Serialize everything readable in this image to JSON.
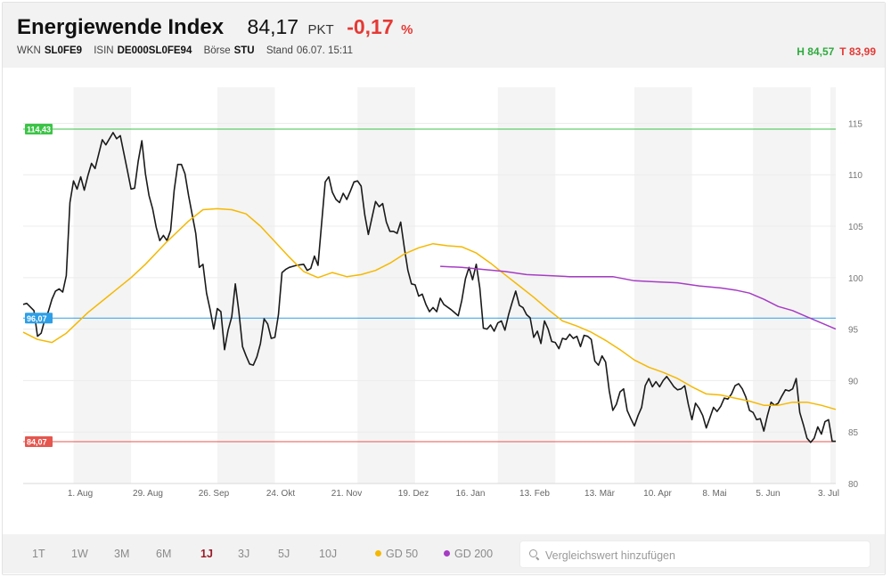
{
  "header": {
    "title": "Energiewende Index",
    "price": "84,17",
    "unit": "PKT",
    "change": "-0,17",
    "change_unit": "%",
    "wkn_label": "WKN",
    "wkn": "SL0FE9",
    "isin_label": "ISIN",
    "isin": "DE000SL0FE94",
    "exchange_label": "Börse",
    "exchange": "STU",
    "stand_label": "Stand",
    "stand": "06.07. 15:11",
    "high": "H 84,57",
    "low": "T 83,99"
  },
  "colors": {
    "price_line": "#1a1a1a",
    "gd50": "#f5b800",
    "gd200": "#a63cc4",
    "high_line": "#3cc447",
    "mid_line": "#2e9fe6",
    "low_line": "#e5564f",
    "band": "#f4f4f4",
    "grid": "#ececec"
  },
  "chart_data": {
    "type": "line",
    "x_ticks": [
      "1. Aug",
      "29. Aug",
      "26. Sep",
      "24. Okt",
      "21. Nov",
      "19. Dez",
      "16. Jan",
      "13. Feb",
      "13. Mär",
      "10. Apr",
      "8. Mai",
      "5. Jun",
      "3. Jul"
    ],
    "y_ticks": [
      80,
      85,
      90,
      95,
      100,
      105,
      110,
      115
    ],
    "ylim": [
      80,
      118.5
    ],
    "grid": true,
    "series": [
      {
        "name": "Kurs",
        "color_key": "price_line",
        "points": [
          [
            0,
            97.4
          ],
          [
            1,
            97.5
          ],
          [
            3,
            96.8
          ],
          [
            4,
            94.3
          ],
          [
            5,
            94.6
          ],
          [
            6,
            95.9
          ],
          [
            7,
            96.7
          ],
          [
            8,
            97.9
          ],
          [
            9,
            98.7
          ],
          [
            10,
            98.9
          ],
          [
            11,
            98.6
          ],
          [
            12,
            100.2
          ],
          [
            13,
            107.3
          ],
          [
            14,
            109.4
          ],
          [
            15,
            108.6
          ],
          [
            16,
            109.8
          ],
          [
            17,
            108.5
          ],
          [
            18,
            109.9
          ],
          [
            19,
            111.1
          ],
          [
            20,
            110.6
          ],
          [
            22,
            113.4
          ],
          [
            23,
            112.9
          ],
          [
            25,
            114.1
          ],
          [
            26,
            113.5
          ],
          [
            27,
            113.8
          ],
          [
            29,
            110.4
          ],
          [
            30,
            108.6
          ],
          [
            31,
            108.7
          ],
          [
            32,
            111.3
          ],
          [
            33,
            113.3
          ],
          [
            34,
            110.1
          ],
          [
            35,
            108.0
          ],
          [
            36,
            106.7
          ],
          [
            37,
            104.9
          ],
          [
            38,
            103.6
          ],
          [
            39,
            104.1
          ],
          [
            40,
            103.6
          ],
          [
            41,
            104.6
          ],
          [
            42,
            108.5
          ],
          [
            43,
            111.0
          ],
          [
            44,
            111.0
          ],
          [
            45,
            110.1
          ],
          [
            46,
            108.0
          ],
          [
            48,
            104.3
          ],
          [
            49,
            101.0
          ],
          [
            50,
            101.3
          ],
          [
            51,
            98.5
          ],
          [
            52,
            96.9
          ],
          [
            53,
            95.0
          ],
          [
            54,
            97.0
          ],
          [
            55,
            96.7
          ],
          [
            56,
            93.0
          ],
          [
            57,
            94.9
          ],
          [
            58,
            96.2
          ],
          [
            59,
            99.4
          ],
          [
            60,
            96.7
          ],
          [
            61,
            93.3
          ],
          [
            62,
            92.4
          ],
          [
            63,
            91.6
          ],
          [
            64,
            91.5
          ],
          [
            65,
            92.3
          ],
          [
            66,
            93.6
          ],
          [
            67,
            96.0
          ],
          [
            68,
            95.5
          ],
          [
            69,
            94.1
          ],
          [
            70,
            94.2
          ],
          [
            71,
            96.4
          ],
          [
            72,
            100.5
          ],
          [
            73,
            100.8
          ],
          [
            74,
            101.0
          ],
          [
            75,
            101.1
          ],
          [
            76,
            101.2
          ],
          [
            78,
            101.3
          ],
          [
            79,
            100.7
          ],
          [
            80,
            100.9
          ],
          [
            81,
            102.1
          ],
          [
            82,
            101.2
          ],
          [
            84,
            109.3
          ],
          [
            85,
            109.8
          ],
          [
            86,
            108.3
          ],
          [
            87,
            107.6
          ],
          [
            88,
            107.3
          ],
          [
            89,
            108.2
          ],
          [
            90,
            107.6
          ],
          [
            91,
            108.4
          ],
          [
            92,
            109.3
          ],
          [
            93,
            109.4
          ],
          [
            94,
            108.9
          ],
          [
            95,
            106.1
          ],
          [
            96,
            104.2
          ],
          [
            97,
            105.8
          ],
          [
            98,
            107.4
          ],
          [
            99,
            106.9
          ],
          [
            100,
            107.2
          ],
          [
            101,
            105.4
          ],
          [
            102,
            104.5
          ],
          [
            103,
            104.5
          ],
          [
            104,
            104.3
          ],
          [
            105,
            105.4
          ],
          [
            106,
            102.9
          ],
          [
            107,
            100.7
          ],
          [
            108,
            99.4
          ],
          [
            109,
            99.3
          ],
          [
            110,
            98.2
          ],
          [
            111,
            98.4
          ],
          [
            112,
            97.4
          ],
          [
            113,
            96.7
          ],
          [
            114,
            97.1
          ],
          [
            115,
            96.7
          ],
          [
            116,
            98.0
          ],
          [
            117,
            97.4
          ],
          [
            119,
            96.9
          ],
          [
            120,
            96.6
          ],
          [
            121,
            96.3
          ],
          [
            122,
            97.8
          ],
          [
            123,
            99.9
          ],
          [
            124,
            101.0
          ],
          [
            125,
            99.8
          ],
          [
            126,
            101.3
          ],
          [
            127,
            99.0
          ],
          [
            128,
            95.1
          ],
          [
            129,
            95.0
          ],
          [
            130,
            95.4
          ],
          [
            131,
            94.8
          ],
          [
            132,
            95.6
          ],
          [
            133,
            95.8
          ],
          [
            134,
            94.9
          ],
          [
            135,
            96.4
          ],
          [
            136,
            97.6
          ],
          [
            137,
            98.7
          ],
          [
            138,
            97.3
          ],
          [
            139,
            97.1
          ],
          [
            140,
            96.4
          ],
          [
            141,
            96.1
          ],
          [
            142,
            94.2
          ],
          [
            143,
            94.8
          ],
          [
            144,
            93.6
          ],
          [
            145,
            95.8
          ],
          [
            146,
            95.0
          ],
          [
            147,
            93.8
          ],
          [
            148,
            93.7
          ],
          [
            149,
            93.1
          ],
          [
            150,
            94.1
          ],
          [
            151,
            94.0
          ],
          [
            152,
            94.5
          ],
          [
            153,
            94.1
          ],
          [
            154,
            94.3
          ],
          [
            155,
            93.3
          ],
          [
            156,
            94.4
          ],
          [
            157,
            94.3
          ],
          [
            158,
            94.0
          ],
          [
            159,
            91.9
          ],
          [
            160,
            91.5
          ],
          [
            161,
            92.4
          ],
          [
            162,
            91.8
          ],
          [
            163,
            89.0
          ],
          [
            164,
            87.1
          ],
          [
            165,
            87.7
          ],
          [
            166,
            88.9
          ],
          [
            167,
            89.2
          ],
          [
            168,
            87.1
          ],
          [
            169,
            86.3
          ],
          [
            170,
            85.6
          ],
          [
            171,
            86.6
          ],
          [
            172,
            87.4
          ],
          [
            173,
            89.5
          ],
          [
            174,
            90.2
          ],
          [
            175,
            89.4
          ],
          [
            176,
            89.9
          ],
          [
            177,
            89.4
          ],
          [
            178,
            90.0
          ],
          [
            179,
            90.4
          ],
          [
            180,
            89.9
          ],
          [
            181,
            89.4
          ],
          [
            182,
            89.1
          ],
          [
            183,
            89.2
          ],
          [
            184,
            89.5
          ],
          [
            185,
            87.7
          ],
          [
            186,
            86.2
          ],
          [
            187,
            87.8
          ],
          [
            188,
            87.3
          ],
          [
            189,
            86.6
          ],
          [
            190,
            85.4
          ],
          [
            191,
            86.4
          ],
          [
            192,
            87.4
          ],
          [
            193,
            87.0
          ],
          [
            194,
            87.5
          ],
          [
            195,
            88.3
          ],
          [
            196,
            88.2
          ],
          [
            197,
            88.7
          ],
          [
            198,
            89.5
          ],
          [
            199,
            89.7
          ],
          [
            200,
            89.2
          ],
          [
            201,
            88.4
          ],
          [
            202,
            87.1
          ],
          [
            203,
            86.9
          ],
          [
            204,
            86.2
          ],
          [
            205,
            86.3
          ],
          [
            206,
            85.1
          ],
          [
            207,
            86.6
          ],
          [
            208,
            87.9
          ],
          [
            209,
            87.6
          ],
          [
            210,
            87.8
          ],
          [
            211,
            88.5
          ],
          [
            212,
            89.1
          ],
          [
            213,
            89.0
          ],
          [
            214,
            89.2
          ],
          [
            215,
            90.2
          ],
          [
            216,
            86.9
          ],
          [
            217,
            85.7
          ],
          [
            218,
            84.4
          ],
          [
            219,
            84.0
          ],
          [
            220,
            84.4
          ],
          [
            221,
            85.5
          ],
          [
            222,
            84.8
          ],
          [
            223,
            86.0
          ],
          [
            224,
            86.2
          ],
          [
            225,
            84.1
          ],
          [
            226,
            84.1
          ]
        ]
      },
      {
        "name": "GD 50",
        "color_key": "gd50",
        "points": [
          [
            0,
            94.7
          ],
          [
            4,
            94.0
          ],
          [
            8,
            93.7
          ],
          [
            12,
            94.6
          ],
          [
            18,
            96.6
          ],
          [
            24,
            98.3
          ],
          [
            30,
            100.0
          ],
          [
            34,
            101.3
          ],
          [
            40,
            103.5
          ],
          [
            46,
            105.5
          ],
          [
            50,
            106.6
          ],
          [
            54,
            106.7
          ],
          [
            58,
            106.6
          ],
          [
            62,
            106.2
          ],
          [
            66,
            105.0
          ],
          [
            70,
            103.5
          ],
          [
            74,
            102.0
          ],
          [
            78,
            100.6
          ],
          [
            82,
            100.0
          ],
          [
            86,
            100.5
          ],
          [
            90,
            100.1
          ],
          [
            94,
            100.3
          ],
          [
            98,
            100.7
          ],
          [
            102,
            101.4
          ],
          [
            106,
            102.3
          ],
          [
            110,
            102.9
          ],
          [
            114,
            103.3
          ],
          [
            118,
            103.1
          ],
          [
            122,
            103.0
          ],
          [
            126,
            102.4
          ],
          [
            130,
            101.4
          ],
          [
            134,
            100.3
          ],
          [
            138,
            99.2
          ],
          [
            142,
            98.1
          ],
          [
            146,
            96.9
          ],
          [
            150,
            95.8
          ],
          [
            154,
            95.3
          ],
          [
            158,
            94.7
          ],
          [
            162,
            93.9
          ],
          [
            166,
            93.0
          ],
          [
            170,
            92.0
          ],
          [
            174,
            91.3
          ],
          [
            178,
            90.8
          ],
          [
            182,
            90.2
          ],
          [
            186,
            89.4
          ],
          [
            190,
            88.7
          ],
          [
            194,
            88.6
          ],
          [
            198,
            88.3
          ],
          [
            202,
            88.0
          ],
          [
            206,
            87.6
          ],
          [
            210,
            87.6
          ],
          [
            214,
            87.9
          ],
          [
            218,
            87.9
          ],
          [
            222,
            87.6
          ],
          [
            226,
            87.2
          ]
        ]
      },
      {
        "name": "GD 200",
        "color_key": "gd200",
        "points": [
          [
            116,
            101.1
          ],
          [
            122,
            101.0
          ],
          [
            128,
            100.8
          ],
          [
            134,
            100.6
          ],
          [
            140,
            100.3
          ],
          [
            146,
            100.2
          ],
          [
            152,
            100.1
          ],
          [
            158,
            100.1
          ],
          [
            164,
            100.1
          ],
          [
            170,
            99.7
          ],
          [
            176,
            99.6
          ],
          [
            182,
            99.5
          ],
          [
            188,
            99.2
          ],
          [
            194,
            99.0
          ],
          [
            198,
            98.8
          ],
          [
            202,
            98.5
          ],
          [
            206,
            97.9
          ],
          [
            210,
            97.2
          ],
          [
            214,
            96.8
          ],
          [
            218,
            96.2
          ],
          [
            222,
            95.6
          ],
          [
            226,
            95.0
          ]
        ]
      }
    ],
    "reference_lines": [
      {
        "value": 114.43,
        "label": "114,43",
        "color_key": "high_line"
      },
      {
        "value": 96.07,
        "label": "96,07",
        "color_key": "mid_line"
      },
      {
        "value": 84.07,
        "label": "84,07",
        "color_key": "low_line"
      }
    ]
  },
  "footer": {
    "ranges": [
      "1T",
      "1W",
      "3M",
      "6M",
      "1J",
      "3J",
      "5J",
      "10J"
    ],
    "active_range": "1J",
    "legend": [
      {
        "label": "GD 50",
        "color_key": "gd50"
      },
      {
        "label": "GD 200",
        "color_key": "gd200"
      }
    ],
    "search_placeholder": "Vergleichswert hinzufügen"
  }
}
